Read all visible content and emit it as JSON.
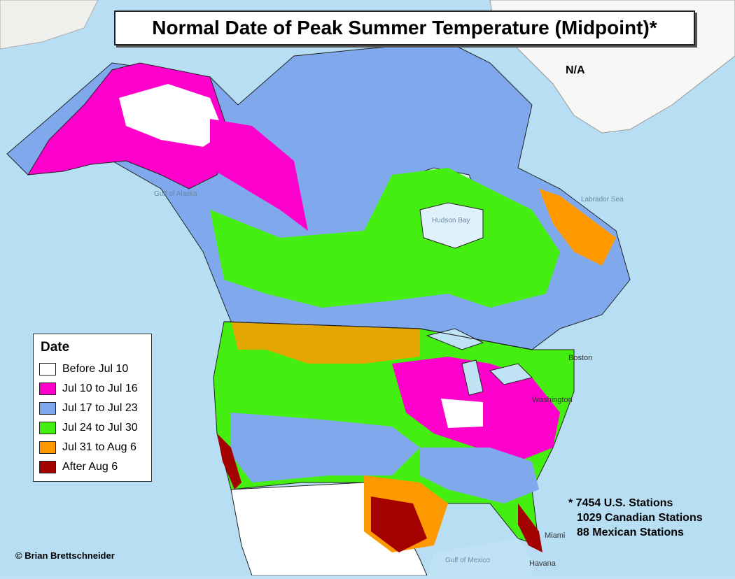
{
  "title": "Normal Date of Peak Summer Temperature (Midpoint)*",
  "greenland_label": "N/A",
  "legend": {
    "title": "Date",
    "items": [
      {
        "label": "Before Jul 10",
        "color": "#ffffff"
      },
      {
        "label": "Jul 10 to Jul 16",
        "color": "#ff00cc"
      },
      {
        "label": "Jul 17 to Jul 23",
        "color": "#7fa9ec"
      },
      {
        "label": "Jul 24 to Jul 30",
        "color": "#44ee11"
      },
      {
        "label": "Jul 31 to Aug 6",
        "color": "#ff9900"
      },
      {
        "label": "After Aug 6",
        "color": "#a30000"
      }
    ]
  },
  "footnote": {
    "line1": "* 7454 U.S. Stations",
    "line2": "1029 Canadian Stations",
    "line3": "88 Mexican Stations"
  },
  "credit": "© Brian Brettschneider",
  "water_labels": {
    "hudson": "Hudson Bay",
    "alaska_gulf": "Gulf of Alaska",
    "mexico_gulf": "Gulf of Mexico",
    "labrador": "Labrador Sea"
  },
  "cities": {
    "boston": "Boston",
    "washington": "Washington",
    "miami": "Miami",
    "havana": "Havana"
  },
  "colors": {
    "ocean": "#bfe2f4",
    "land_outside": "#f4f4f0",
    "border": "#222222"
  }
}
